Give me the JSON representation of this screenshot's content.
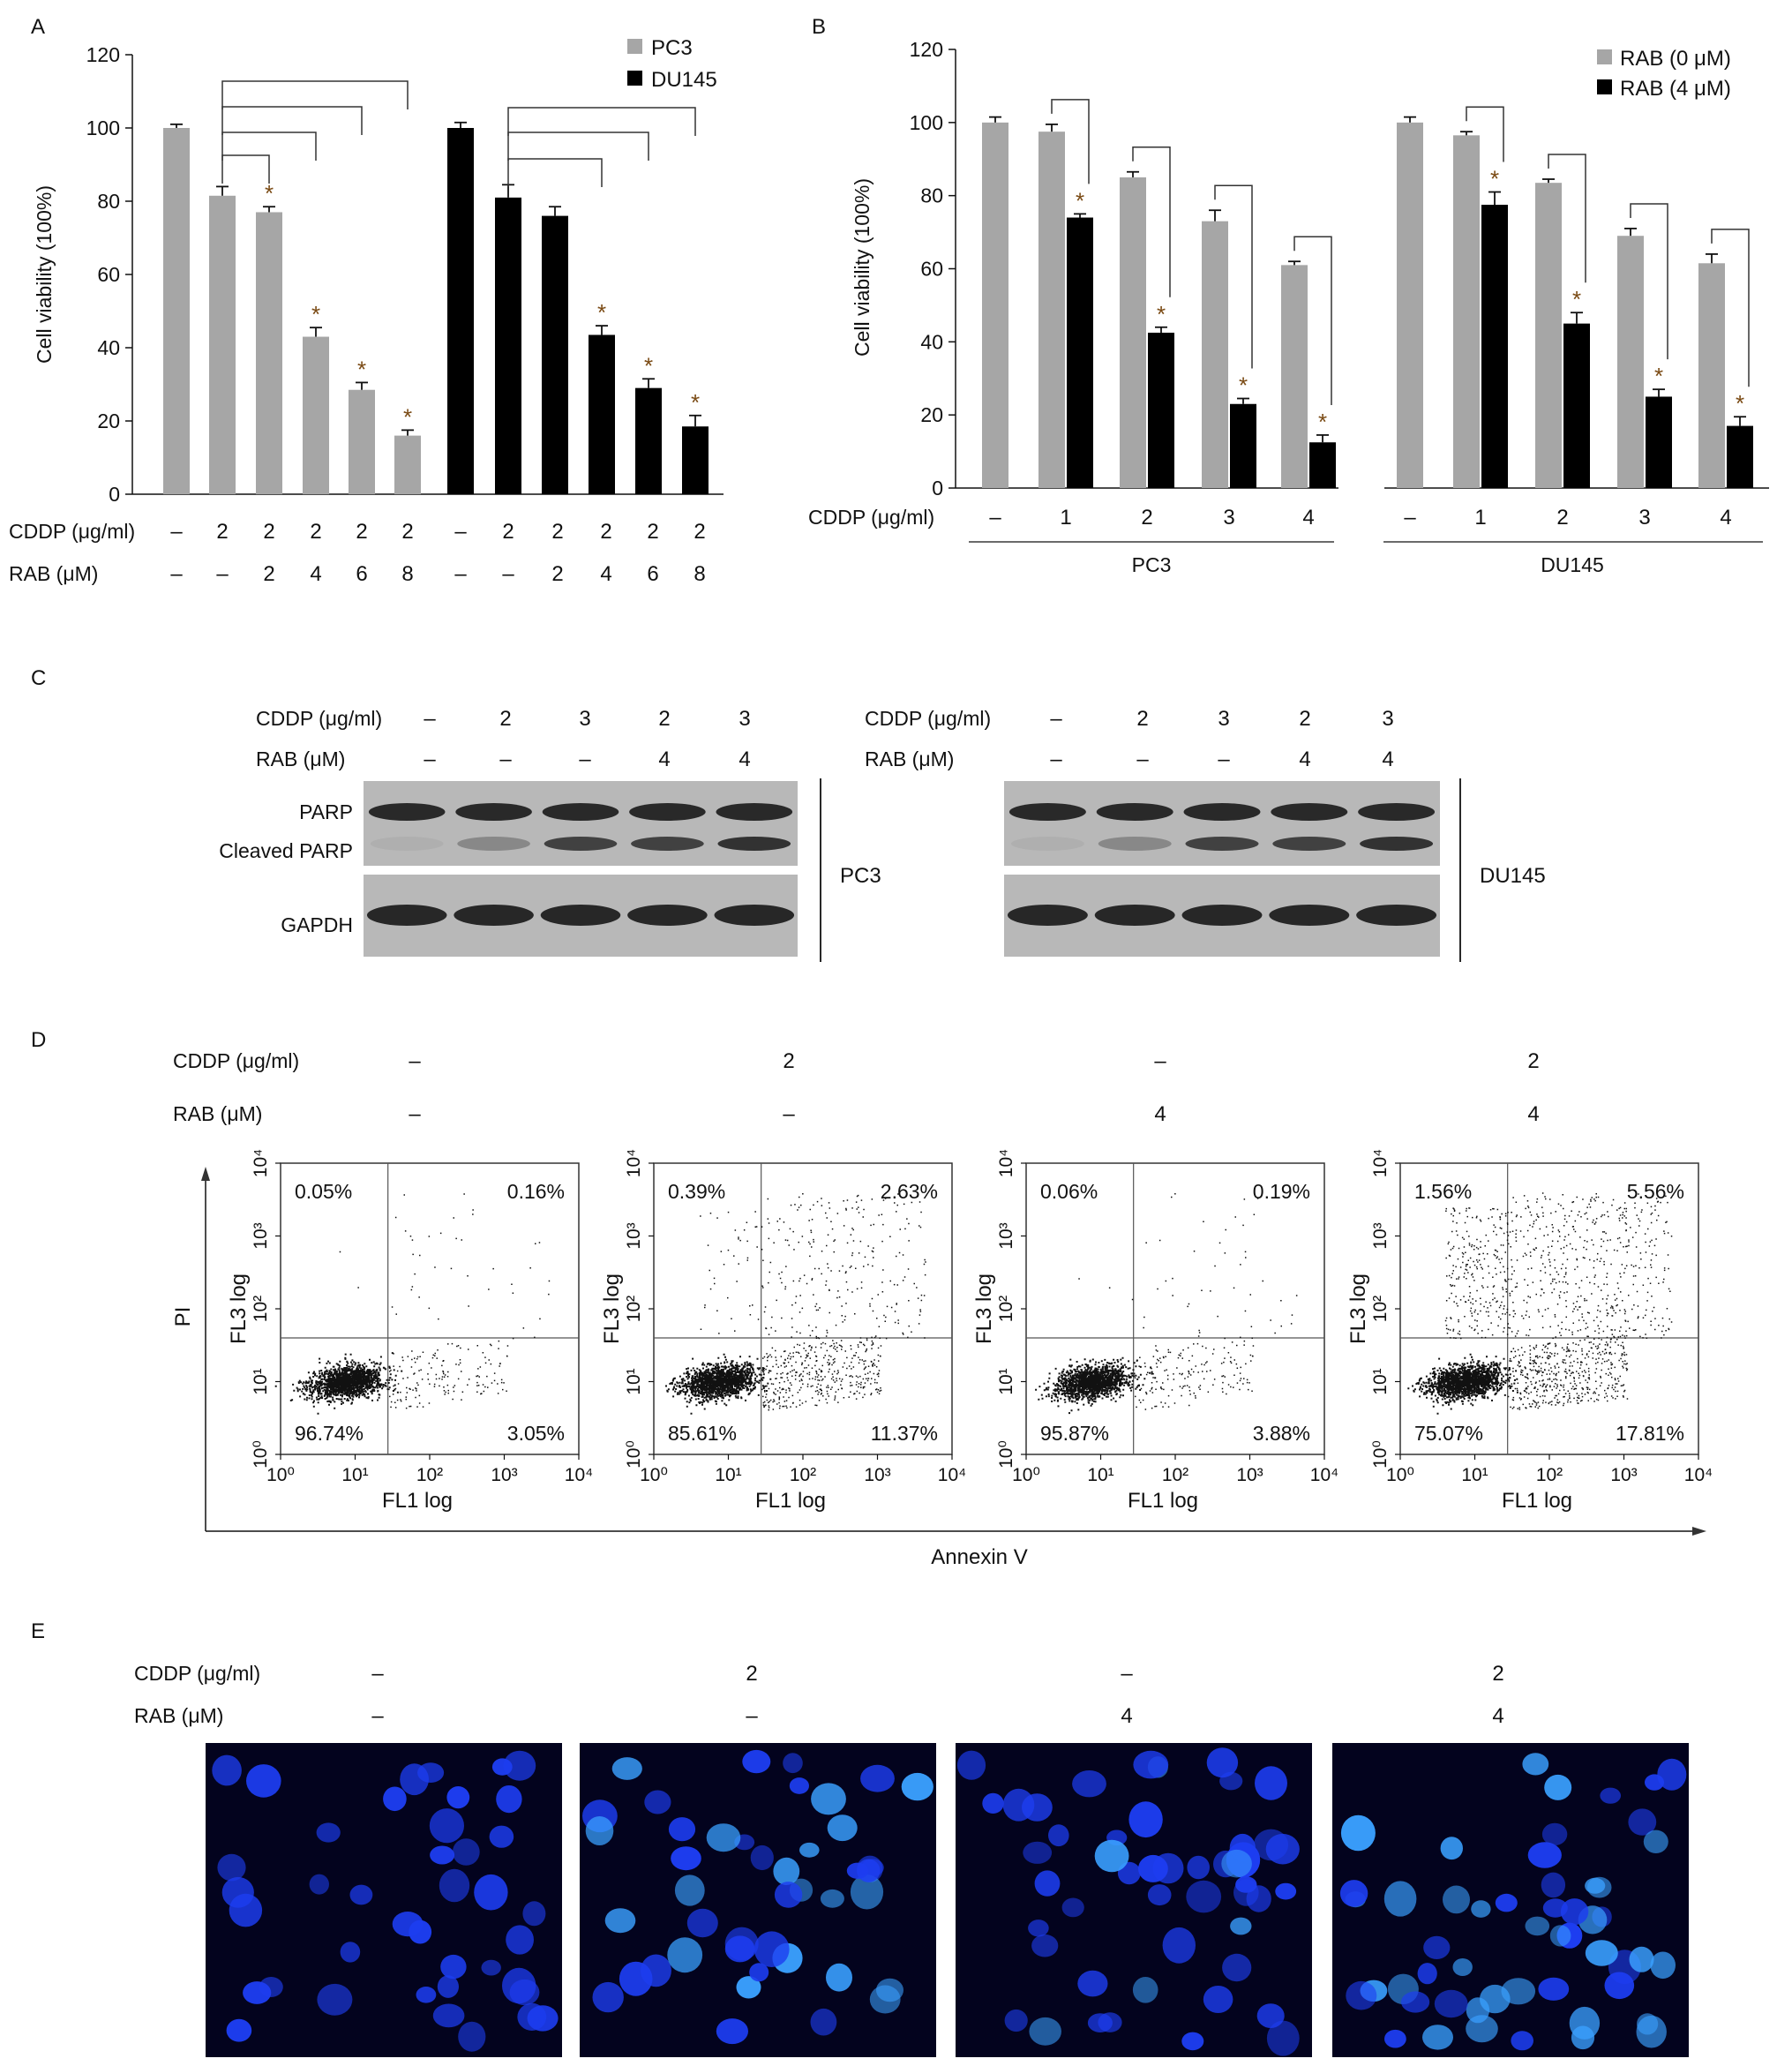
{
  "panel_letters": {
    "a": "A",
    "b": "B",
    "c": "C",
    "d": "D",
    "e": "E"
  },
  "colors": {
    "pc3_gray": "#a6a6a6",
    "rab0_gray": "#a6a6a6",
    "black": "#000000",
    "blot_bg": "#b8b8b8",
    "dapi_bg": "#03031e",
    "nucleus": "#1d3df0"
  },
  "chart_data": [
    {
      "id": "A",
      "type": "bar",
      "ylabel": "Cell viability (100%)",
      "ylim": [
        0,
        120
      ],
      "yticks": [
        0,
        20,
        40,
        60,
        80,
        100,
        120
      ],
      "legend": [
        "PC3",
        "DU145"
      ],
      "legend_placement": "top-right",
      "series": [
        {
          "name": "PC3",
          "color": "#a6a6a6",
          "values": [
            100,
            81.5,
            77,
            43,
            28.5,
            16
          ],
          "errors": [
            1,
            2.5,
            1.5,
            2.5,
            2,
            1.5
          ],
          "significant": [
            false,
            false,
            true,
            true,
            true,
            true
          ]
        },
        {
          "name": "DU145",
          "color": "#000000",
          "values": [
            100,
            81,
            76,
            43.5,
            29,
            18.5
          ],
          "errors": [
            1.5,
            3.5,
            2.5,
            2.5,
            2.5,
            3
          ],
          "significant": [
            false,
            false,
            false,
            true,
            true,
            true
          ]
        }
      ],
      "row_labels": [
        "CDDP (μg/ml)",
        "RAB (μM)"
      ],
      "cddp_row": [
        "–",
        "2",
        "2",
        "2",
        "2",
        "2",
        "–",
        "2",
        "2",
        "2",
        "2",
        "2"
      ],
      "rab_row": [
        "–",
        "–",
        "2",
        "4",
        "6",
        "8",
        "–",
        "–",
        "2",
        "4",
        "6",
        "8"
      ],
      "significance_marker": "*"
    },
    {
      "id": "B",
      "type": "bar",
      "ylabel": "Cell viability (100%)",
      "ylim": [
        0,
        120
      ],
      "yticks": [
        0,
        20,
        40,
        60,
        80,
        100,
        120
      ],
      "legend": [
        "RAB (0 μM)",
        "RAB (4 μM)"
      ],
      "legend_placement": "top-right",
      "x_row_label": "CDDP (μg/ml)",
      "groups": [
        {
          "name": "PC3",
          "categories": [
            "–",
            "1",
            "2",
            "3",
            "4"
          ],
          "series": [
            {
              "name": "RAB (0 μM)",
              "values": [
                100,
                97.5,
                85,
                73,
                61
              ],
              "errors": [
                1.5,
                2,
                1.5,
                3,
                1
              ]
            },
            {
              "name": "RAB (4 μM)",
              "values": [
                null,
                74,
                42.5,
                23,
                12.5
              ],
              "errors": [
                null,
                1,
                1.5,
                1.5,
                2
              ]
            }
          ]
        },
        {
          "name": "DU145",
          "categories": [
            "–",
            "1",
            "2",
            "3",
            "4"
          ],
          "series": [
            {
              "name": "RAB (0 μM)",
              "values": [
                100,
                96.5,
                83.5,
                69,
                61.5
              ],
              "errors": [
                1.5,
                1,
                1,
                2,
                2.5
              ]
            },
            {
              "name": "RAB (4 μM)",
              "values": [
                null,
                77.5,
                45,
                25,
                17
              ],
              "errors": [
                null,
                3.5,
                3,
                2,
                2.5
              ]
            }
          ]
        }
      ],
      "significance_marker": "*"
    },
    {
      "id": "D",
      "type": "scatter",
      "x_axis_label": "FL1 log",
      "y_axis_label": "FL3 log",
      "outer_x_label": "Annexin V",
      "outer_y_label": "PI",
      "xticks": [
        "10⁰",
        "10¹",
        "10²",
        "10³",
        "10⁴"
      ],
      "yticks": [
        "10⁰",
        "10¹",
        "10²",
        "10³",
        "10⁴"
      ],
      "plots": [
        {
          "upper_left": "0.05%",
          "upper_right": "0.16%",
          "lower_left": "96.74%",
          "lower_right": "3.05%"
        },
        {
          "upper_left": "0.39%",
          "upper_right": "2.63%",
          "lower_left": "85.61%",
          "lower_right": "11.37%"
        },
        {
          "upper_left": "0.06%",
          "upper_right": "0.19%",
          "lower_left": "95.87%",
          "lower_right": "3.88%"
        },
        {
          "upper_left": "1.56%",
          "upper_right": "5.56%",
          "lower_left": "75.07%",
          "lower_right": "17.81%"
        }
      ]
    }
  ],
  "panel_c": {
    "row_labels": [
      "CDDP (μg/ml)",
      "RAB (μM)"
    ],
    "cddp": [
      "–",
      "2",
      "3",
      "2",
      "3"
    ],
    "rab": [
      "–",
      "–",
      "–",
      "4",
      "4"
    ],
    "band_labels": [
      "PARP",
      "Cleaved PARP",
      "GAPDH"
    ],
    "cell_lines": [
      "PC3",
      "DU145"
    ]
  },
  "panel_d": {
    "row_labels": [
      "CDDP (μg/ml)",
      "RAB (μM)"
    ],
    "cddp": [
      "–",
      "2",
      "–",
      "2"
    ],
    "rab": [
      "–",
      "–",
      "4",
      "4"
    ]
  },
  "panel_e": {
    "row_labels": [
      "CDDP (μg/ml)",
      "RAB (μM)"
    ],
    "cddp": [
      "–",
      "2",
      "–",
      "2"
    ],
    "rab": [
      "–",
      "–",
      "4",
      "4"
    ]
  }
}
